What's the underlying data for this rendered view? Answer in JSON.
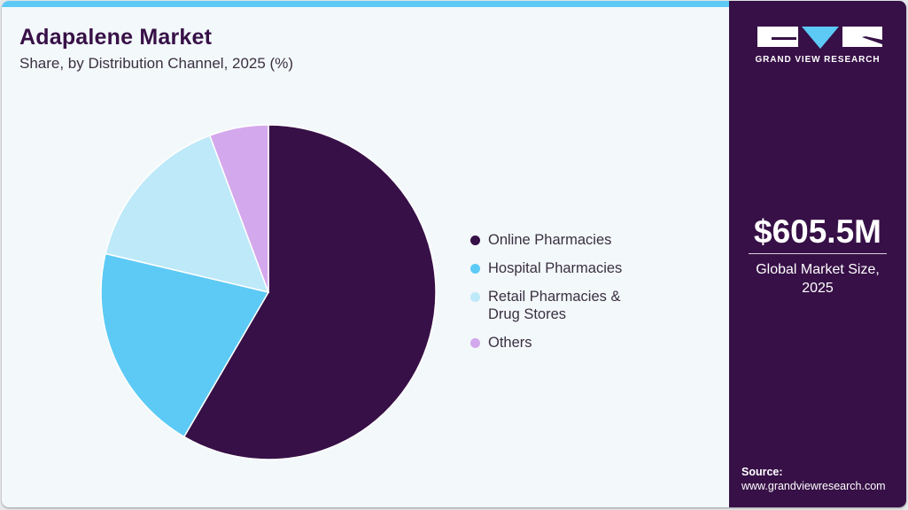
{
  "header": {
    "title": "Adapalene Market",
    "subtitle": "Share, by Distribution Channel, 2025 (%)"
  },
  "colors": {
    "accent_bar": "#5ccaf5",
    "side_panel": "#371047",
    "background": "#f3f8fb"
  },
  "chart_data": {
    "type": "pie",
    "title": "Adapalene Market",
    "subtitle": "Share, by Distribution Channel, 2025 (%)",
    "categories": [
      "Online Pharmacies",
      "Hospital Pharmacies",
      "Retail Pharmacies & Drug Stores",
      "Others"
    ],
    "values": [
      58.4,
      20.3,
      15.6,
      5.7
    ],
    "colors": [
      "#371047",
      "#5ccaf5",
      "#bde9f9",
      "#d4a8ec"
    ],
    "start_angle": "12 o'clock, clockwise",
    "legend_position": "right",
    "xlabel": "",
    "ylabel": ""
  },
  "legend": {
    "items": [
      {
        "label": "Online Pharmacies",
        "color": "#371047"
      },
      {
        "label": "Hospital Pharmacies",
        "color": "#5ccaf5"
      },
      {
        "label": "Retail Pharmacies &",
        "label2": "Drug Stores",
        "color": "#bde9f9"
      },
      {
        "label": "Others",
        "color": "#d4a8ec"
      }
    ]
  },
  "side_panel": {
    "logo_text": "GRAND VIEW RESEARCH",
    "market_size": "$605.5M",
    "market_size_label_1": "Global Market Size,",
    "market_size_label_2": "2025",
    "source_label": "Source:",
    "source_url": "www.grandviewresearch.com"
  }
}
